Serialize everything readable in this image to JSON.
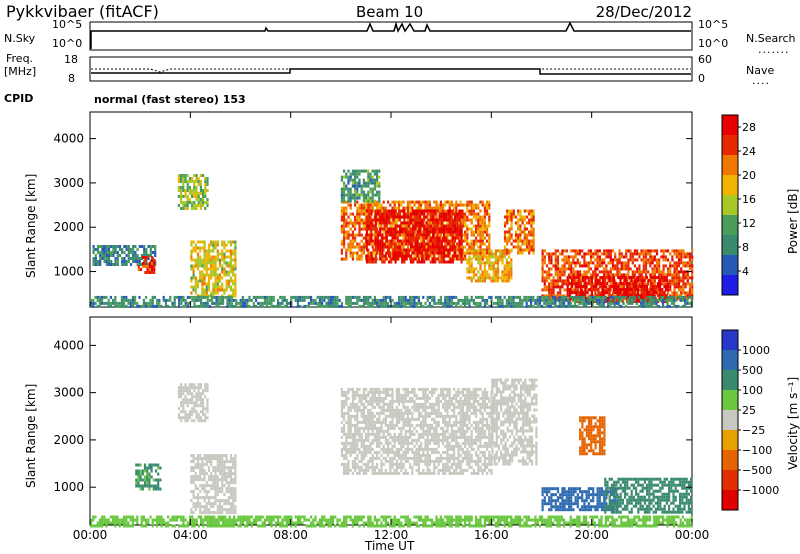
{
  "header": {
    "radar": "Pykkvibaer (fitACF)",
    "beam": "Beam 10",
    "date": "28/Dec/2012"
  },
  "panels": {
    "nsky": {
      "label": "N.Sky",
      "ticks": [
        "10^5",
        "10^0"
      ],
      "right_label": "N.Search",
      "right_ticks": [
        "10^5",
        "10^0"
      ]
    },
    "freq": {
      "label_top": "Freq.",
      "label_bottom": "[MHz]",
      "ticks": [
        "18",
        "8"
      ],
      "right_label": "Nave",
      "right_ticks": [
        "60",
        "0"
      ]
    },
    "cpid": {
      "label": "CPID",
      "text": "normal (fast stereo) 153"
    }
  },
  "colors": {
    "power_scale": [
      "#1e1ee6",
      "#2858b8",
      "#3a8a6e",
      "#4a9e5a",
      "#a8c828",
      "#f0b400",
      "#f07800",
      "#e82800",
      "#e60000"
    ],
    "velocity_scale": [
      "#2838c8",
      "#2e6ab0",
      "#3a8a70",
      "#6ac840",
      "#c8c8c0",
      "#e6a000",
      "#e66400",
      "#e03000",
      "#e00000"
    ]
  },
  "chart_data": [
    {
      "type": "heatmap",
      "name": "Power",
      "xlabel": "",
      "ylabel": "Slant Range [km]",
      "x_ticks": [
        "00:00",
        "04:00",
        "08:00",
        "12:00",
        "16:00",
        "20:00",
        "00:00"
      ],
      "y_ticks": [
        "1000",
        "2000",
        "3000",
        "4000"
      ],
      "ylim": [
        200,
        4600
      ],
      "colorbar": {
        "label": "Power [dB]",
        "ticks": [
          "4",
          "8",
          "12",
          "16",
          "20",
          "24",
          "28"
        ],
        "range": [
          0,
          30
        ]
      },
      "regions": [
        {
          "t0": 0.1,
          "t1": 2.6,
          "r0": 1150,
          "r1": 1600,
          "level": 8
        },
        {
          "t0": 1.9,
          "t1": 2.6,
          "r0": 950,
          "r1": 1350,
          "level": 26
        },
        {
          "t0": 3.5,
          "t1": 4.7,
          "r0": 2400,
          "r1": 3200,
          "level": 14
        },
        {
          "t0": 4.0,
          "t1": 5.8,
          "r0": 450,
          "r1": 1700,
          "level": 17
        },
        {
          "t0": 10.0,
          "t1": 15.9,
          "r0": 1300,
          "r1": 2600,
          "level": 22
        },
        {
          "t0": 11.0,
          "t1": 14.8,
          "r0": 1200,
          "r1": 2400,
          "level": 28
        },
        {
          "t0": 10.0,
          "t1": 11.5,
          "r0": 2600,
          "r1": 3300,
          "level": 10
        },
        {
          "t0": 15.0,
          "t1": 16.8,
          "r0": 800,
          "r1": 1500,
          "level": 19
        },
        {
          "t0": 16.5,
          "t1": 17.7,
          "r0": 1400,
          "r1": 2400,
          "level": 22
        },
        {
          "t0": 18.0,
          "t1": 24.0,
          "r0": 400,
          "r1": 1500,
          "level": 24
        },
        {
          "t0": 19.0,
          "t1": 23.0,
          "r0": 300,
          "r1": 900,
          "level": 29
        },
        {
          "t0": 0.0,
          "t1": 24.0,
          "r0": 200,
          "r1": 450,
          "level": 9
        }
      ]
    },
    {
      "type": "heatmap",
      "name": "Velocity",
      "xlabel": "Time UT",
      "ylabel": "Slant Range [km]",
      "x_ticks": [
        "00:00",
        "04:00",
        "08:00",
        "12:00",
        "16:00",
        "20:00",
        "00:00"
      ],
      "y_ticks": [
        "1000",
        "2000",
        "3000",
        "4000"
      ],
      "ylim": [
        200,
        4600
      ],
      "colorbar": {
        "label": "Velocity [m s⁻¹]",
        "ticks": [
          "1000",
          "500",
          "100",
          "25",
          "−25",
          "−100",
          "−500",
          "−1000"
        ],
        "range": [
          -1000,
          1000
        ]
      },
      "regions": [
        {
          "t0": 3.5,
          "t1": 4.7,
          "r0": 2400,
          "r1": 3200,
          "level": 0
        },
        {
          "t0": 1.8,
          "t1": 2.8,
          "r0": 950,
          "r1": 1500,
          "level": 150
        },
        {
          "t0": 4.0,
          "t1": 5.8,
          "r0": 450,
          "r1": 1700,
          "level": 0
        },
        {
          "t0": 10.0,
          "t1": 16.0,
          "r0": 1300,
          "r1": 3100,
          "level": 0
        },
        {
          "t0": 16.0,
          "t1": 17.8,
          "r0": 1500,
          "r1": 3300,
          "level": 0
        },
        {
          "t0": 18.0,
          "t1": 21.0,
          "r0": 500,
          "r1": 1000,
          "level": 800
        },
        {
          "t0": 20.5,
          "t1": 24.0,
          "r0": 450,
          "r1": 1200,
          "level": 300
        },
        {
          "t0": 19.5,
          "t1": 20.5,
          "r0": 1700,
          "r1": 2500,
          "level": -300
        },
        {
          "t0": 0.0,
          "t1": 24.0,
          "r0": 200,
          "r1": 400,
          "level": 40
        }
      ]
    }
  ]
}
